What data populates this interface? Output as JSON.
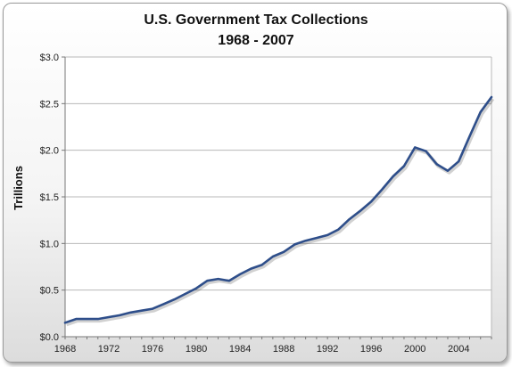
{
  "chart_data": {
    "type": "line",
    "title": "U.S. Government Tax Collections",
    "subtitle": "1968 - 2007",
    "xlabel": "",
    "ylabel": "Trillions",
    "xlim": [
      1968,
      2007
    ],
    "ylim": [
      0,
      3.0
    ],
    "x_ticks": [
      1968,
      1972,
      1976,
      1980,
      1984,
      1988,
      1992,
      1996,
      2000,
      2004
    ],
    "x_tick_labels": [
      "1968",
      "1972",
      "1976",
      "1980",
      "1984",
      "1988",
      "1992",
      "1996",
      "2000",
      "2004"
    ],
    "y_ticks": [
      0,
      0.5,
      1.0,
      1.5,
      2.0,
      2.5,
      3.0
    ],
    "y_tick_labels": [
      "$0.0",
      "$0.5",
      "$1.0",
      "$1.5",
      "$2.0",
      "$2.5",
      "$3.0"
    ],
    "grid": true,
    "legend": "none",
    "series": [
      {
        "color": "#2e4e8a",
        "x": [
          1968,
          1969,
          1970,
          1971,
          1972,
          1973,
          1974,
          1975,
          1976,
          1977,
          1978,
          1979,
          1980,
          1981,
          1982,
          1983,
          1984,
          1985,
          1986,
          1987,
          1988,
          1989,
          1990,
          1991,
          1992,
          1993,
          1994,
          1995,
          1996,
          1997,
          1998,
          1999,
          2000,
          2001,
          2002,
          2003,
          2004,
          2005,
          2006,
          2007
        ],
        "values": [
          0.15,
          0.19,
          0.19,
          0.19,
          0.21,
          0.23,
          0.26,
          0.28,
          0.3,
          0.35,
          0.4,
          0.46,
          0.52,
          0.6,
          0.62,
          0.6,
          0.67,
          0.73,
          0.77,
          0.86,
          0.91,
          0.99,
          1.03,
          1.06,
          1.09,
          1.15,
          1.26,
          1.35,
          1.45,
          1.58,
          1.72,
          1.83,
          2.03,
          1.99,
          1.85,
          1.78,
          1.88,
          2.15,
          2.41,
          2.57
        ]
      }
    ]
  }
}
